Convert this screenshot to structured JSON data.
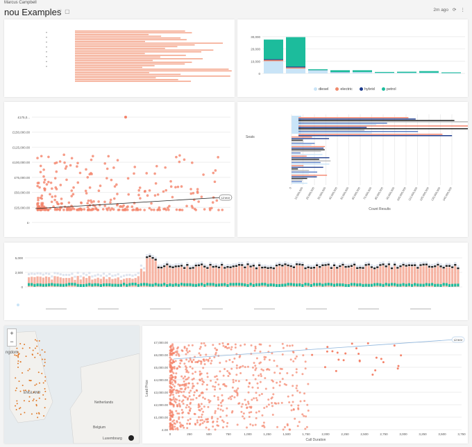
{
  "header": {
    "user": "Marcus Campbell",
    "title": "nou Examples",
    "updated": "2m ago"
  },
  "bar1": {
    "type": "bar",
    "yticks": [
      "0",
      "10,000",
      "20,000",
      "30,000"
    ],
    "values": [
      {
        "seg": [
          10000,
          1000,
          600,
          16000
        ]
      },
      {
        "seg": [
          4000,
          900,
          700,
          24000
        ]
      },
      {
        "seg": [
          2500,
          0,
          150,
          800
        ]
      },
      {
        "seg": [
          1000,
          0,
          120,
          1500
        ]
      },
      {
        "seg": [
          1100,
          0,
          100,
          1400
        ]
      },
      {
        "seg": [
          500,
          0,
          0,
          700
        ]
      },
      {
        "seg": [
          500,
          0,
          0,
          900
        ]
      },
      {
        "seg": [
          600,
          0,
          0,
          1300
        ]
      },
      {
        "seg": [
          300,
          0,
          0,
          600
        ]
      }
    ],
    "legend": [
      "diesel",
      "electric",
      "hybrid",
      "petrol"
    ],
    "colors": [
      "#c9e4f7",
      "#f08a6c",
      "#1b3a8c",
      "#1cbc9c"
    ]
  },
  "scatter1": {
    "yticks": [
      "£-",
      "£25,000.00",
      "£50,000.00",
      "£75,000.00",
      "£100,000.00",
      "£125,000.00",
      "£150,000.00",
      "£175,0..."
    ],
    "trend": "Linear"
  },
  "hbar": {
    "ylabel": "Seats",
    "xlabel": "Count Results",
    "xticks": [
      "0",
      "10,000,000",
      "20,000,000",
      "30,000,000",
      "40,000,000",
      "50,000,000",
      "60,000,000",
      "70,000,000",
      "80,000,000",
      "90,000,000",
      "100,000,000",
      "110,000,000",
      "120,000,000",
      "130,000,000",
      "140,000,000"
    ]
  },
  "timeseries": {
    "yticks": [
      "0",
      "2,500",
      "5,000"
    ]
  },
  "map": {
    "labels": [
      "ENGLAND",
      "Netherlands",
      "Belgium",
      "Luxembourg",
      "Nederland",
      "ngdom"
    ]
  },
  "scatter2": {
    "xlabel": "Call Duration",
    "ylabel": "Lead Price",
    "xticks": [
      "0",
      "250",
      "500",
      "750",
      "1,000",
      "1,250",
      "1,500",
      "1,750",
      "2,000",
      "2,250",
      "2,500",
      "2,750",
      "3,000",
      "3,250",
      "3,500",
      "3,750"
    ],
    "yticks": [
      "£.00",
      "£1,000.00",
      "£2,000.00",
      "£3,000.00",
      "£4,000.00",
      "£5,000.00",
      "£6,000.00",
      "£7,000.00"
    ],
    "trend": "Linear"
  }
}
